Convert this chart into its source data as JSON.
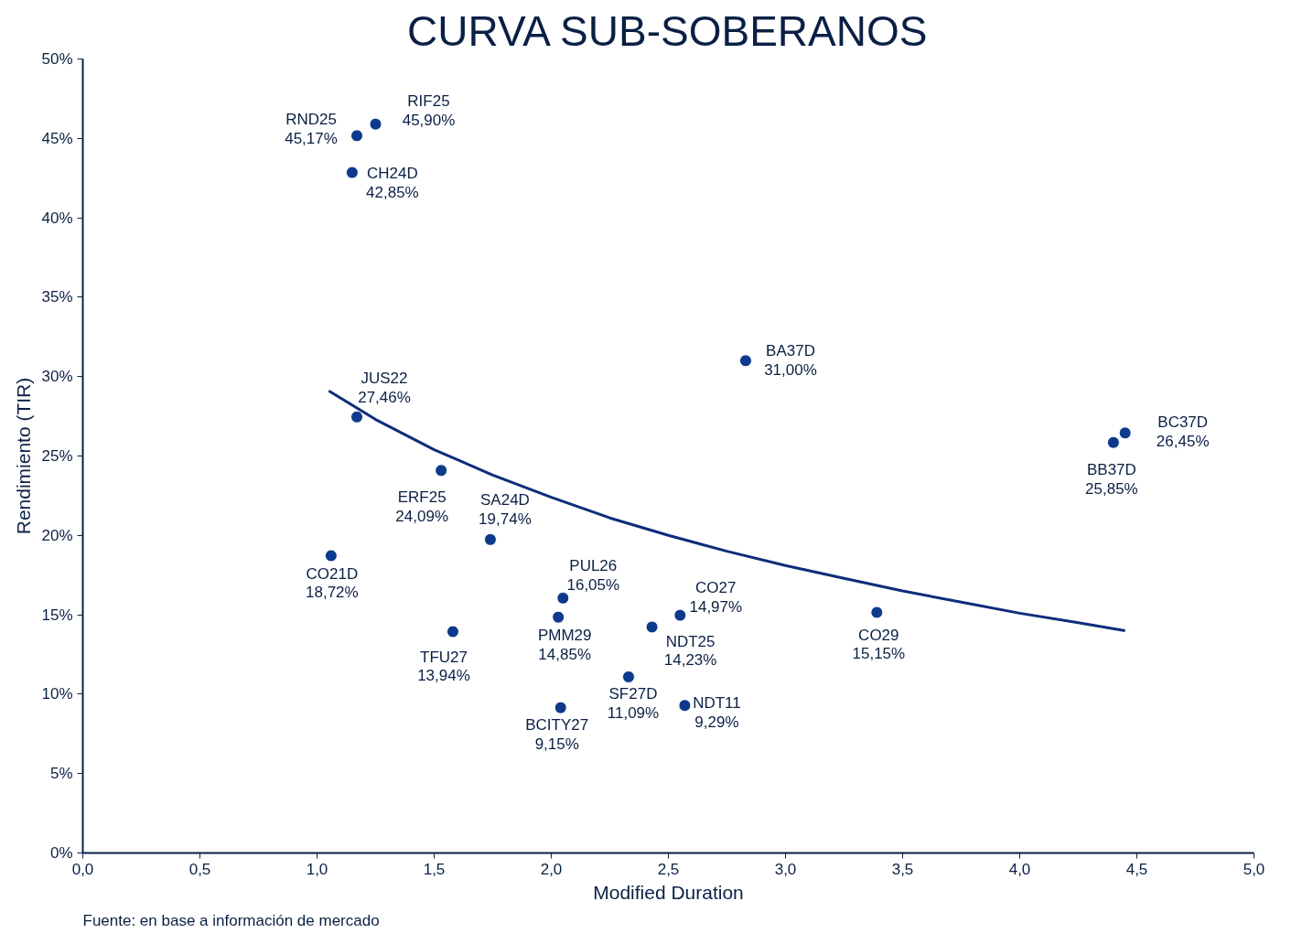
{
  "chart_data": {
    "type": "scatter",
    "title": "CURVA SUB-SOBERANOS",
    "xlabel": "Modified Duration",
    "ylabel": "Rendimiento (TIR)",
    "xlim": [
      0,
      5
    ],
    "ylim": [
      0,
      50
    ],
    "xticks": [
      {
        "value": 0,
        "label": "0,0"
      },
      {
        "value": 0.5,
        "label": "0,5"
      },
      {
        "value": 1,
        "label": "1,0"
      },
      {
        "value": 1.5,
        "label": "1,5"
      },
      {
        "value": 2,
        "label": "2,0"
      },
      {
        "value": 2.5,
        "label": "2,5"
      },
      {
        "value": 3,
        "label": "3,0"
      },
      {
        "value": 3.5,
        "label": "3,5"
      },
      {
        "value": 4,
        "label": "4,0"
      },
      {
        "value": 4.5,
        "label": "4,5"
      },
      {
        "value": 5,
        "label": "5,0"
      }
    ],
    "yticks": [
      {
        "value": 0,
        "label": "0%"
      },
      {
        "value": 5,
        "label": "5%"
      },
      {
        "value": 10,
        "label": "10%"
      },
      {
        "value": 15,
        "label": "15%"
      },
      {
        "value": 20,
        "label": "20%"
      },
      {
        "value": 25,
        "label": "25%"
      },
      {
        "value": 30,
        "label": "30%"
      },
      {
        "value": 35,
        "label": "35%"
      },
      {
        "value": 40,
        "label": "40%"
      },
      {
        "value": 45,
        "label": "45%"
      },
      {
        "value": 50,
        "label": "50%"
      }
    ],
    "grid": false,
    "series": [
      {
        "marker": "circle",
        "color": "#0d3a8c",
        "x": [
          1.25,
          1.17,
          1.15,
          1.17,
          1.53,
          1.74,
          1.06,
          1.58,
          2.05,
          2.03,
          2.04,
          2.33,
          2.43,
          2.55,
          2.57,
          2.83,
          3.39,
          4.4,
          4.45
        ],
        "values": [
          45.9,
          45.17,
          42.85,
          27.46,
          24.09,
          19.74,
          18.72,
          13.94,
          16.05,
          14.85,
          9.15,
          11.09,
          14.23,
          14.97,
          9.29,
          31.0,
          15.15,
          25.85,
          26.45
        ]
      },
      {
        "type": "line",
        "color": "#0d2d7a",
        "x": [
          1.05,
          1.25,
          1.5,
          1.75,
          2.0,
          2.25,
          2.5,
          2.75,
          3.0,
          3.25,
          3.5,
          3.75,
          4.0,
          4.25,
          4.45
        ],
        "values": [
          29.1,
          27.3,
          25.4,
          23.8,
          22.4,
          21.1,
          20.0,
          19.0,
          18.1,
          17.3,
          16.5,
          15.8,
          15.1,
          14.5,
          14.0
        ]
      }
    ],
    "annotations": [
      {
        "text": "RIF25\n45,90%",
        "x": 1.25,
        "y": 45.9
      },
      {
        "text": "RND25\n45,17%",
        "x": 1.17,
        "y": 45.17
      },
      {
        "text": "CH24D\n42,85%",
        "x": 1.15,
        "y": 42.85
      },
      {
        "text": "JUS22\n27,46%",
        "x": 1.17,
        "y": 27.46
      },
      {
        "text": "ERF25\n24,09%",
        "x": 1.53,
        "y": 24.09
      },
      {
        "text": "SA24D\n19,74%",
        "x": 1.74,
        "y": 19.74
      },
      {
        "text": "CO21D\n18,72%",
        "x": 1.06,
        "y": 18.72
      },
      {
        "text": "TFU27\n13,94%",
        "x": 1.58,
        "y": 13.94
      },
      {
        "text": "PUL26\n16,05%",
        "x": 2.05,
        "y": 16.05
      },
      {
        "text": "PMM29\n14,85%",
        "x": 2.03,
        "y": 14.85
      },
      {
        "text": "BCITY27\n9,15%",
        "x": 2.04,
        "y": 9.15
      },
      {
        "text": "SF27D\n11,09%",
        "x": 2.33,
        "y": 11.09
      },
      {
        "text": "NDT25\n14,23%",
        "x": 2.43,
        "y": 14.23
      },
      {
        "text": "CO27\n14,97%",
        "x": 2.55,
        "y": 14.97
      },
      {
        "text": "NDT11\n9,29%",
        "x": 2.57,
        "y": 9.29
      },
      {
        "text": "BA37D\n31,00%",
        "x": 2.83,
        "y": 31.0
      },
      {
        "text": "CO29\n15,15%",
        "x": 3.39,
        "y": 15.15
      },
      {
        "text": "BB37D\n25,85%",
        "x": 4.4,
        "y": 25.85
      },
      {
        "text": "BC37D\n26,45%",
        "x": 4.45,
        "y": 26.45
      },
      "Fuente: en base a información de mercado"
    ]
  }
}
